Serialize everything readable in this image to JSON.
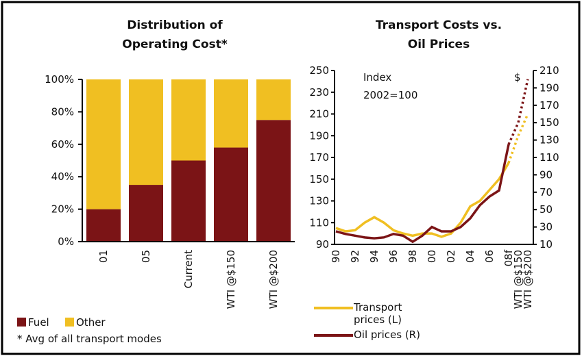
{
  "chart_data": [
    {
      "type": "stacked_bar",
      "title": [
        "Distribution of",
        "Operating Cost*"
      ],
      "categories": [
        "01",
        "05",
        "Current",
        "WTI @$150",
        "WTI @$200"
      ],
      "series": [
        {
          "name": "Fuel",
          "color": "#7b1416",
          "values": [
            20,
            35,
            50,
            58,
            75
          ]
        },
        {
          "name": "Other",
          "color": "#f0bf22",
          "values": [
            80,
            65,
            50,
            42,
            25
          ]
        }
      ],
      "ylim": [
        0,
        100
      ],
      "yticks": [
        {
          "value": 0,
          "label": "0%"
        },
        {
          "value": 20,
          "label": "20%"
        },
        {
          "value": 40,
          "label": "40%"
        },
        {
          "value": 60,
          "label": "60%"
        },
        {
          "value": 80,
          "label": "80%"
        },
        {
          "value": 100,
          "label": "100%"
        }
      ],
      "note": "* Avg of all transport modes"
    },
    {
      "type": "line",
      "title": [
        "Transport Costs vs.",
        "Oil Prices"
      ],
      "categories": [
        "90",
        null,
        "92",
        null,
        "94",
        null,
        "96",
        null,
        "98",
        null,
        "00",
        null,
        "02",
        null,
        "04",
        null,
        "06",
        null,
        "08f",
        "WTI @$150",
        "WTI @$200"
      ],
      "dashed_from": "08f",
      "series": [
        {
          "name": "Transport prices (L)",
          "color": "#f0bf22",
          "axis": "y",
          "values": [
            105,
            102,
            103,
            110,
            115,
            110,
            103,
            100,
            98,
            100,
            100,
            97,
            100,
            110,
            125,
            130,
            140,
            150,
            165,
            190,
            210
          ]
        },
        {
          "name": "Oil prices (R)",
          "color": "#7b1416",
          "axis": "y2",
          "values": [
            25,
            22,
            20,
            18,
            17,
            18,
            22,
            20,
            13,
            20,
            30,
            25,
            25,
            30,
            40,
            55,
            65,
            72,
            125,
            150,
            200
          ]
        }
      ],
      "ylim": [
        90,
        250
      ],
      "yticks": [
        90,
        110,
        130,
        150,
        170,
        190,
        210,
        230,
        250
      ],
      "y2lim": [
        10,
        210
      ],
      "y2ticks": [
        10,
        30,
        50,
        70,
        90,
        110,
        130,
        150,
        170,
        190,
        210
      ],
      "annotations": [
        "Index",
        "2002=100",
        "$"
      ]
    }
  ]
}
